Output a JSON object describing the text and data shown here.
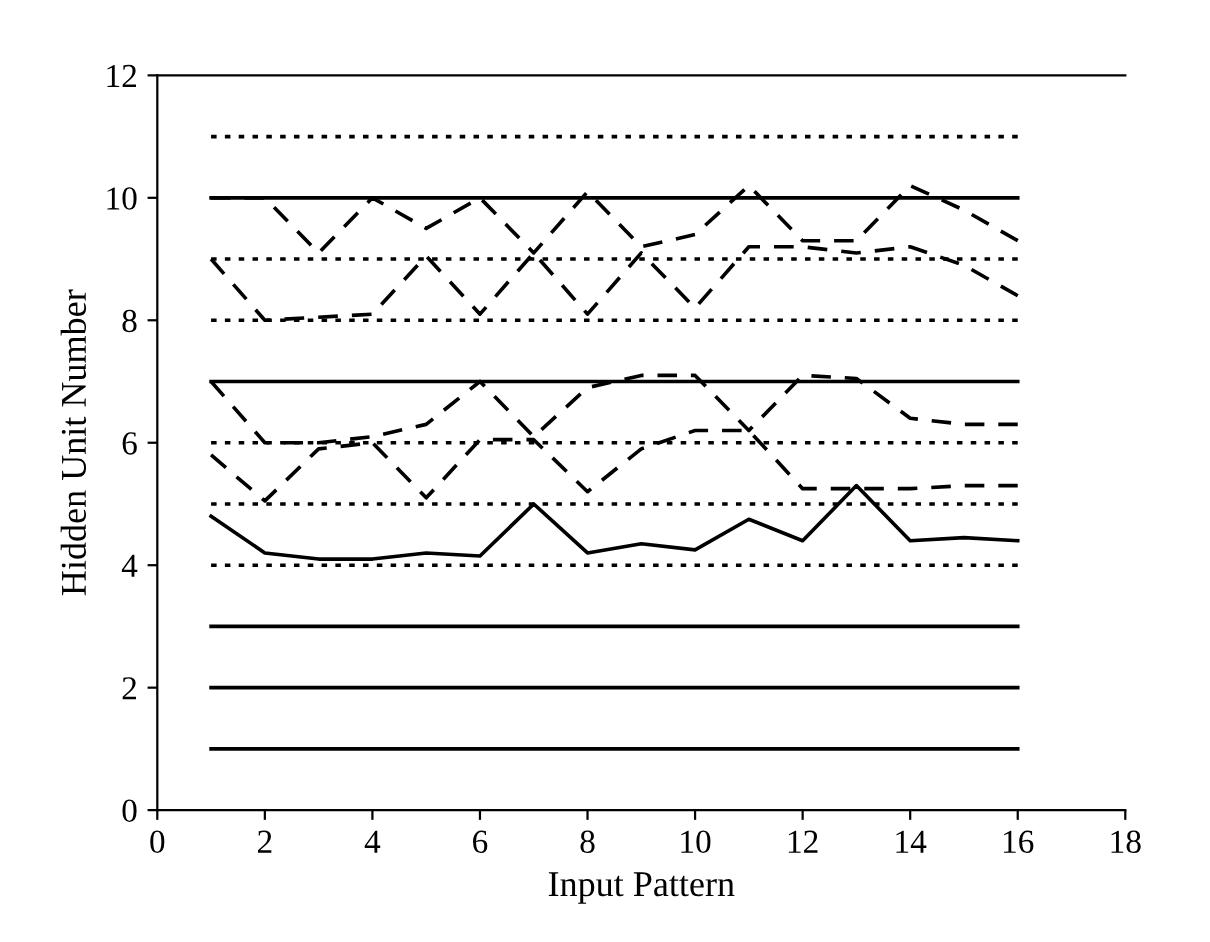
{
  "chart_data": {
    "type": "line",
    "xlabel": "Input Pattern",
    "ylabel": "Hidden Unit Number",
    "x": [
      1,
      2,
      3,
      4,
      5,
      6,
      7,
      8,
      9,
      10,
      11,
      12,
      13,
      14,
      15,
      16
    ],
    "xlim": [
      0,
      18
    ],
    "xticks": [
      0,
      2,
      4,
      6,
      8,
      10,
      12,
      14,
      16,
      18
    ],
    "ylim": [
      0,
      12
    ],
    "yticks": [
      0,
      2,
      4,
      6,
      8,
      10,
      12
    ],
    "grid": false,
    "marker": "none",
    "series": [
      {
        "color": "#000000",
        "line_style": "solid",
        "values": [
          1,
          1,
          1,
          1,
          1,
          1,
          1,
          1,
          1,
          1,
          1,
          1,
          1,
          1,
          1,
          1
        ]
      },
      {
        "color": "#000000",
        "line_style": "solid",
        "values": [
          2,
          2,
          2,
          2,
          2,
          2,
          2,
          2,
          2,
          2,
          2,
          2,
          2,
          2,
          2,
          2
        ]
      },
      {
        "color": "#000000",
        "line_style": "solid",
        "values": [
          3,
          3,
          3,
          3,
          3,
          3,
          3,
          3,
          3,
          3,
          3,
          3,
          3,
          3,
          3,
          3
        ]
      },
      {
        "color": "#000000",
        "line_style": "dotted",
        "values": [
          4,
          4,
          4,
          4,
          4,
          4,
          4,
          4,
          4,
          4,
          4,
          4,
          4,
          4,
          4,
          4
        ]
      },
      {
        "color": "#000000",
        "line_style": "dotted",
        "values": [
          5,
          5,
          5,
          5,
          5,
          5,
          5,
          5,
          5,
          5,
          5,
          5,
          5,
          5,
          5,
          5
        ]
      },
      {
        "color": "#000000",
        "line_style": "dotted",
        "values": [
          6,
          6,
          6,
          6,
          6,
          6,
          6,
          6,
          6,
          6,
          6,
          6,
          6,
          6,
          6,
          6
        ]
      },
      {
        "color": "#000000",
        "line_style": "solid",
        "values": [
          7,
          7,
          7,
          7,
          7,
          7,
          7,
          7,
          7,
          7,
          7,
          7,
          7,
          7,
          7,
          7
        ]
      },
      {
        "color": "#000000",
        "line_style": "dotted",
        "values": [
          8,
          8,
          8,
          8,
          8,
          8,
          8,
          8,
          8,
          8,
          8,
          8,
          8,
          8,
          8,
          8
        ]
      },
      {
        "color": "#000000",
        "line_style": "dotted",
        "values": [
          9,
          9,
          9,
          9,
          9,
          9,
          9,
          9,
          9,
          9,
          9,
          9,
          9,
          9,
          9,
          9
        ]
      },
      {
        "color": "#000000",
        "line_style": "solid",
        "values": [
          10,
          10,
          10,
          10,
          10,
          10,
          10,
          10,
          10,
          10,
          10,
          10,
          10,
          10,
          10,
          10
        ]
      },
      {
        "color": "#000000",
        "line_style": "dotted",
        "values": [
          11,
          11,
          11,
          11,
          11,
          11,
          11,
          11,
          11,
          11,
          11,
          11,
          11,
          11,
          11,
          11
        ]
      },
      {
        "color": "#000000",
        "line_style": "solid",
        "values": [
          4.8,
          4.2,
          4.1,
          4.1,
          4.2,
          4.15,
          5.0,
          4.2,
          4.35,
          4.25,
          4.75,
          4.4,
          5.3,
          4.4,
          4.45,
          4.4
        ]
      },
      {
        "color": "#000000",
        "line_style": "dashed",
        "values": [
          5.8,
          5.05,
          5.9,
          6.0,
          5.1,
          6.05,
          6.05,
          5.2,
          5.9,
          6.2,
          6.2,
          5.25,
          5.25,
          5.25,
          5.3,
          5.3
        ]
      },
      {
        "color": "#000000",
        "line_style": "dashed",
        "values": [
          7.0,
          6.0,
          6.0,
          6.1,
          6.3,
          7.0,
          6.1,
          6.9,
          7.1,
          7.1,
          6.2,
          7.1,
          7.05,
          6.4,
          6.3,
          6.3
        ]
      },
      {
        "color": "#000000",
        "line_style": "dashed",
        "values": [
          9.0,
          8.0,
          8.05,
          8.1,
          9.05,
          8.1,
          9.1,
          8.1,
          9.1,
          8.2,
          9.2,
          9.2,
          9.1,
          9.2,
          8.9,
          8.4
        ]
      },
      {
        "color": "#000000",
        "line_style": "dashed",
        "values": [
          10.0,
          10.0,
          9.1,
          10.0,
          9.5,
          10.0,
          9.1,
          10.1,
          9.2,
          9.4,
          10.2,
          9.3,
          9.3,
          10.2,
          9.8,
          9.3
        ]
      }
    ]
  }
}
